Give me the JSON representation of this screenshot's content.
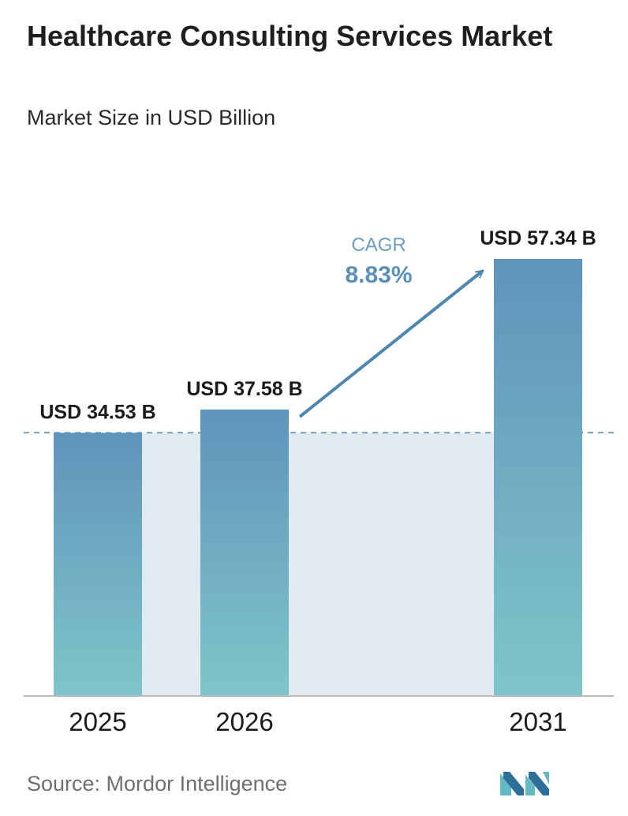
{
  "title": "Healthcare Consulting Services Market",
  "subtitle": "Market Size in USD Billion",
  "source": "Source:  Mordor Intelligence",
  "colors": {
    "bar_top": "#5f94bb",
    "bar_bottom": "#7fc5c9",
    "band": "#e1e9f1",
    "arrow": "#4f86b0",
    "dashed_line": "#4f86b0",
    "baseline": "#bbbbbb",
    "cagr_label": "#6d9cc3",
    "cagr_value": "#5a8fb8",
    "logo_dark": "#2e6f99",
    "logo_light": "#65b9c2"
  },
  "chart_data": {
    "type": "bar",
    "categories": [
      "2025",
      "2026",
      "2031"
    ],
    "values": [
      34.53,
      37.58,
      57.34
    ],
    "data_labels": [
      "USD 34.53 B",
      "USD 37.58 B",
      "USD 57.34 B"
    ],
    "ylim": [
      0,
      57.34
    ],
    "grid": false,
    "reference_line": {
      "value": 34.53,
      "style": "dashed"
    },
    "annotation": {
      "label": "CAGR",
      "value": "8.83%",
      "arrow_from": "2026",
      "arrow_to": "2031"
    }
  }
}
